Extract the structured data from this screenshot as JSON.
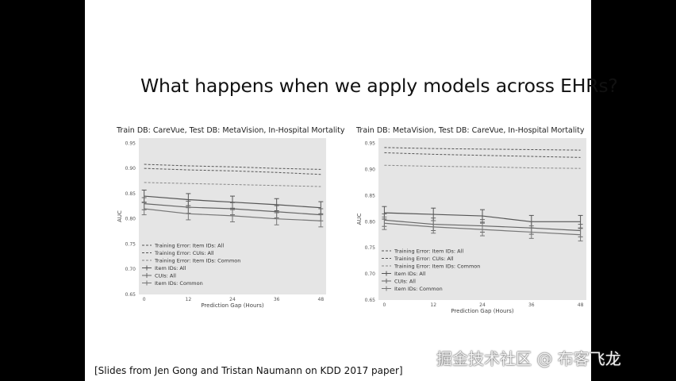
{
  "slide": {
    "title": "What happens when we apply models across EHRs?",
    "citation": "[Slides from Jen Gong and Tristan Naumann on KDD 2017 paper]"
  },
  "watermark": "掘金技术社区 @ 布客飞龙",
  "chart_data": [
    {
      "type": "line",
      "title": "Train DB: CareVue, Test DB: MetaVision, In-Hospital Mortality",
      "xlabel": "Prediction Gap (Hours)",
      "ylabel": "AUC",
      "x": [
        0,
        12,
        24,
        36,
        48
      ],
      "xticks": [
        0,
        12,
        24,
        36,
        48
      ],
      "yticks": [
        0.65,
        0.7,
        0.75,
        0.8,
        0.85,
        0.9,
        0.95
      ],
      "ylim": [
        0.65,
        0.96
      ],
      "grid": false,
      "legend": "bottom-left",
      "series": [
        {
          "name": "Training Error: Item IDs: All",
          "style": "dashed",
          "values": [
            0.908,
            0.905,
            0.903,
            0.9,
            0.898
          ]
        },
        {
          "name": "Training Error: CUIs: All",
          "style": "dashed",
          "values": [
            0.9,
            0.897,
            0.895,
            0.892,
            0.888
          ]
        },
        {
          "name": "Training Error: Item IDs: Common",
          "style": "dashed",
          "values": [
            0.872,
            0.87,
            0.868,
            0.866,
            0.864
          ]
        },
        {
          "name": "Item IDs: All",
          "style": "solid",
          "values": [
            0.845,
            0.838,
            0.833,
            0.828,
            0.822
          ],
          "error": 0.012
        },
        {
          "name": "CUIs: All",
          "style": "solid",
          "values": [
            0.83,
            0.823,
            0.82,
            0.814,
            0.808
          ],
          "error": 0.012
        },
        {
          "name": "Item IDs: Common",
          "style": "solid",
          "values": [
            0.82,
            0.81,
            0.806,
            0.8,
            0.796
          ],
          "error": 0.012
        }
      ]
    },
    {
      "type": "line",
      "title": "Train DB: MetaVision, Test DB: CareVue, In-Hospital Mortality",
      "xlabel": "Prediction Gap (Hours)",
      "ylabel": "AUC",
      "x": [
        0,
        12,
        24,
        36,
        48
      ],
      "xticks": [
        0,
        12,
        24,
        36,
        48
      ],
      "yticks": [
        0.65,
        0.7,
        0.75,
        0.8,
        0.85,
        0.9,
        0.95
      ],
      "ylim": [
        0.65,
        0.96
      ],
      "grid": false,
      "legend": "bottom-left",
      "series": [
        {
          "name": "Training Error: Item IDs: All",
          "style": "dashed",
          "values": [
            0.942,
            0.94,
            0.939,
            0.938,
            0.937
          ]
        },
        {
          "name": "Training Error: CUIs: All",
          "style": "dashed",
          "values": [
            0.932,
            0.929,
            0.927,
            0.925,
            0.923
          ]
        },
        {
          "name": "Training Error: Item IDs: Common",
          "style": "dashed",
          "values": [
            0.908,
            0.906,
            0.905,
            0.903,
            0.902
          ]
        },
        {
          "name": "Item IDs: All",
          "style": "solid",
          "values": [
            0.817,
            0.814,
            0.811,
            0.8,
            0.8
          ],
          "error": 0.012
        },
        {
          "name": "CUIs: All",
          "style": "solid",
          "values": [
            0.803,
            0.795,
            0.792,
            0.788,
            0.783
          ],
          "error": 0.012
        },
        {
          "name": "Item IDs: Common",
          "style": "solid",
          "values": [
            0.797,
            0.79,
            0.785,
            0.78,
            0.775
          ],
          "error": 0.012
        }
      ]
    }
  ]
}
